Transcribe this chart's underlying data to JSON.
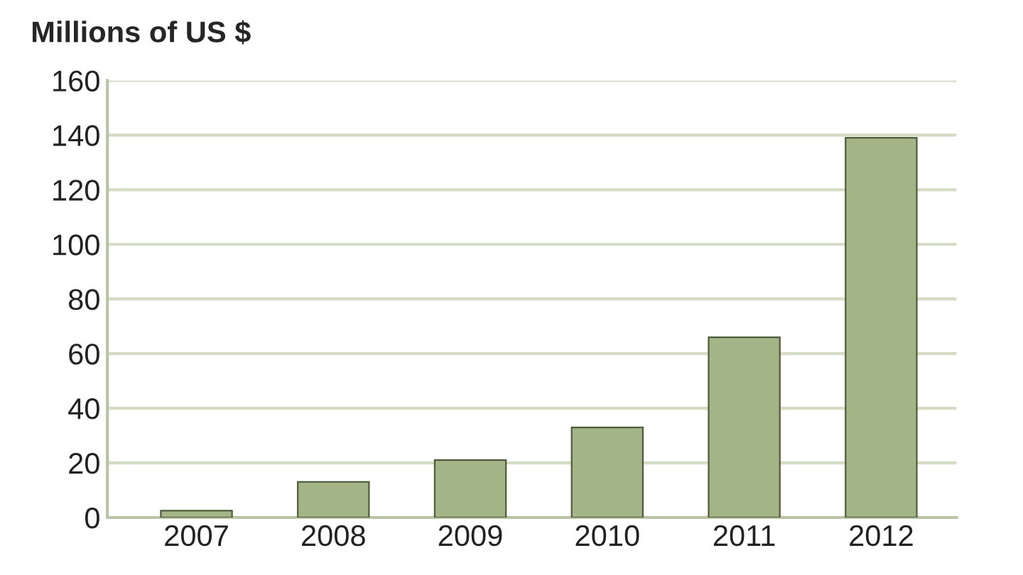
{
  "chart_data": {
    "type": "bar",
    "ylabel": "Millions of US $",
    "categories": [
      "2007",
      "2008",
      "2009",
      "2010",
      "2011",
      "2012"
    ],
    "values": [
      2.5,
      13,
      21,
      33,
      66,
      139
    ],
    "color": "#a3b487",
    "ylim": [
      0,
      160
    ],
    "yticks": [
      0,
      20,
      40,
      60,
      80,
      100,
      120,
      140,
      160
    ],
    "grid": "y"
  }
}
